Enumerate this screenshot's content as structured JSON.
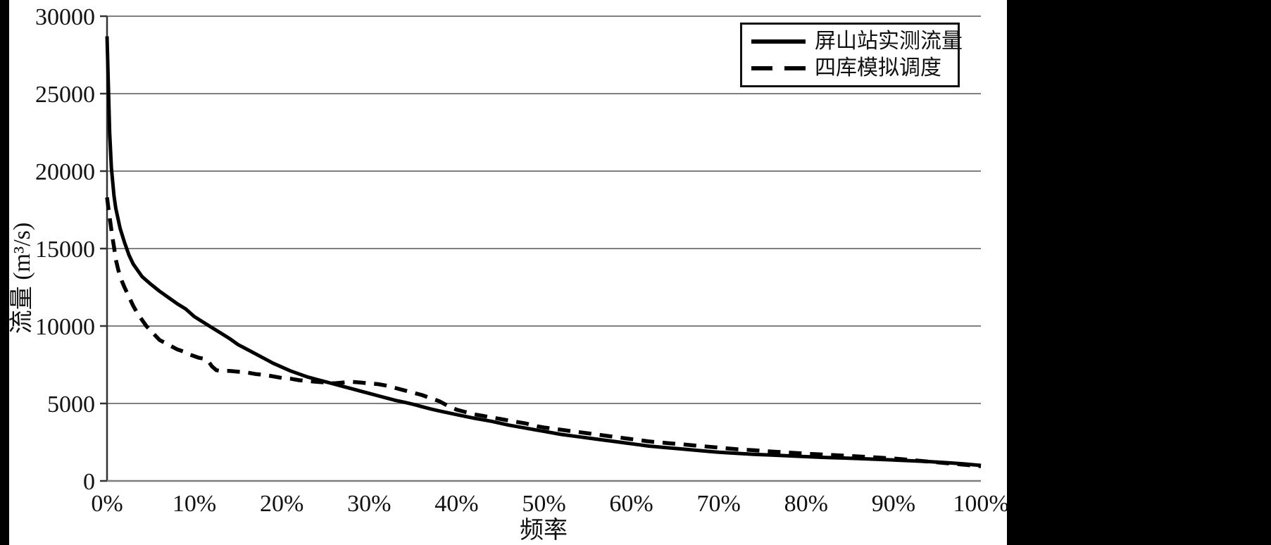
{
  "chart_data": {
    "type": "line",
    "title": "",
    "xlabel": "频率",
    "ylabel": "流量 (m³/s)",
    "xlim": [
      0,
      100
    ],
    "ylim": [
      0,
      30000
    ],
    "grid": "horizontal-only",
    "legend_position": "top-right",
    "x_ticks": {
      "values": [
        0,
        10,
        20,
        30,
        40,
        50,
        60,
        70,
        80,
        90,
        100
      ],
      "labels": [
        "0%",
        "10%",
        "20%",
        "30%",
        "40%",
        "50%",
        "60%",
        "70%",
        "80%",
        "90%",
        "100%"
      ]
    },
    "y_ticks": {
      "values": [
        0,
        5000,
        10000,
        15000,
        20000,
        25000,
        30000
      ],
      "labels": [
        "0",
        "5000",
        "10000",
        "15000",
        "20000",
        "25000",
        "30000"
      ]
    },
    "series": [
      {
        "name": "屏山站实测流量",
        "style": "solid",
        "color": "#000000",
        "points": [
          [
            0,
            28700
          ],
          [
            0.15,
            25500
          ],
          [
            0.3,
            22500
          ],
          [
            0.5,
            20200
          ],
          [
            0.8,
            18400
          ],
          [
            1,
            17600
          ],
          [
            1.5,
            16300
          ],
          [
            2,
            15400
          ],
          [
            2.5,
            14600
          ],
          [
            3,
            14000
          ],
          [
            3.5,
            13600
          ],
          [
            4,
            13200
          ],
          [
            4.5,
            12950
          ],
          [
            5,
            12700
          ],
          [
            6,
            12250
          ],
          [
            7,
            11850
          ],
          [
            8,
            11450
          ],
          [
            9,
            11100
          ],
          [
            10,
            10600
          ],
          [
            11,
            10250
          ],
          [
            12,
            9900
          ],
          [
            13,
            9550
          ],
          [
            14,
            9200
          ],
          [
            15,
            8800
          ],
          [
            16,
            8500
          ],
          [
            17,
            8200
          ],
          [
            18,
            7900
          ],
          [
            19,
            7600
          ],
          [
            20,
            7350
          ],
          [
            21,
            7100
          ],
          [
            22,
            6900
          ],
          [
            23,
            6700
          ],
          [
            24,
            6550
          ],
          [
            25,
            6400
          ],
          [
            26,
            6250
          ],
          [
            27,
            6100
          ],
          [
            28,
            5950
          ],
          [
            29,
            5800
          ],
          [
            30,
            5650
          ],
          [
            31,
            5500
          ],
          [
            32,
            5350
          ],
          [
            33,
            5200
          ],
          [
            34,
            5080
          ],
          [
            35,
            4950
          ],
          [
            36,
            4800
          ],
          [
            37,
            4650
          ],
          [
            38,
            4520
          ],
          [
            39,
            4400
          ],
          [
            40,
            4280
          ],
          [
            42,
            4050
          ],
          [
            44,
            3850
          ],
          [
            46,
            3600
          ],
          [
            48,
            3400
          ],
          [
            50,
            3200
          ],
          [
            52,
            3000
          ],
          [
            54,
            2850
          ],
          [
            56,
            2700
          ],
          [
            58,
            2550
          ],
          [
            60,
            2400
          ],
          [
            62,
            2250
          ],
          [
            64,
            2150
          ],
          [
            66,
            2050
          ],
          [
            68,
            1950
          ],
          [
            70,
            1850
          ],
          [
            72,
            1780
          ],
          [
            74,
            1720
          ],
          [
            76,
            1670
          ],
          [
            78,
            1620
          ],
          [
            80,
            1570
          ],
          [
            82,
            1520
          ],
          [
            84,
            1480
          ],
          [
            86,
            1440
          ],
          [
            88,
            1400
          ],
          [
            90,
            1350
          ],
          [
            92,
            1300
          ],
          [
            94,
            1250
          ],
          [
            96,
            1180
          ],
          [
            98,
            1100
          ],
          [
            100,
            1000
          ]
        ]
      },
      {
        "name": "四库模拟调度",
        "style": "dashed",
        "color": "#000000",
        "points": [
          [
            0,
            18300
          ],
          [
            0.2,
            17400
          ],
          [
            0.4,
            16600
          ],
          [
            0.6,
            15800
          ],
          [
            0.8,
            15100
          ],
          [
            1,
            14300
          ],
          [
            1.3,
            13600
          ],
          [
            1.7,
            12900
          ],
          [
            2,
            12500
          ],
          [
            2.5,
            11900
          ],
          [
            3,
            11300
          ],
          [
            3.5,
            10800
          ],
          [
            4,
            10400
          ],
          [
            4.5,
            10000
          ],
          [
            5,
            9700
          ],
          [
            5.5,
            9400
          ],
          [
            6,
            9100
          ],
          [
            6.5,
            8950
          ],
          [
            7,
            8800
          ],
          [
            7.5,
            8650
          ],
          [
            8,
            8500
          ],
          [
            8.5,
            8400
          ],
          [
            9,
            8300
          ],
          [
            9.5,
            8150
          ],
          [
            10,
            8050
          ],
          [
            10.5,
            7950
          ],
          [
            11,
            7900
          ],
          [
            11.5,
            7800
          ],
          [
            12,
            7400
          ],
          [
            12.5,
            7150
          ],
          [
            13,
            7100
          ],
          [
            14,
            7100
          ],
          [
            15,
            7050
          ],
          [
            16,
            7000
          ],
          [
            17,
            6900
          ],
          [
            18,
            6850
          ],
          [
            19,
            6750
          ],
          [
            20,
            6650
          ],
          [
            21,
            6600
          ],
          [
            22,
            6500
          ],
          [
            23,
            6450
          ],
          [
            24,
            6400
          ],
          [
            25,
            6350
          ],
          [
            26,
            6300
          ],
          [
            27,
            6350
          ],
          [
            28,
            6400
          ],
          [
            29,
            6350
          ],
          [
            30,
            6300
          ],
          [
            31,
            6250
          ],
          [
            32,
            6150
          ],
          [
            33,
            6000
          ],
          [
            34,
            5850
          ],
          [
            35,
            5700
          ],
          [
            36,
            5550
          ],
          [
            37,
            5350
          ],
          [
            38,
            5150
          ],
          [
            39,
            4850
          ],
          [
            40,
            4600
          ],
          [
            41,
            4450
          ],
          [
            42,
            4300
          ],
          [
            43,
            4200
          ],
          [
            44,
            4100
          ],
          [
            45,
            4000
          ],
          [
            46,
            3900
          ],
          [
            47,
            3800
          ],
          [
            48,
            3700
          ],
          [
            49,
            3550
          ],
          [
            50,
            3450
          ],
          [
            52,
            3300
          ],
          [
            54,
            3150
          ],
          [
            56,
            3000
          ],
          [
            58,
            2850
          ],
          [
            60,
            2700
          ],
          [
            62,
            2550
          ],
          [
            64,
            2450
          ],
          [
            66,
            2350
          ],
          [
            68,
            2250
          ],
          [
            70,
            2150
          ],
          [
            72,
            2050
          ],
          [
            74,
            1980
          ],
          [
            76,
            1900
          ],
          [
            78,
            1830
          ],
          [
            80,
            1760
          ],
          [
            82,
            1700
          ],
          [
            84,
            1640
          ],
          [
            86,
            1580
          ],
          [
            88,
            1520
          ],
          [
            90,
            1450
          ],
          [
            92,
            1350
          ],
          [
            94,
            1250
          ],
          [
            96,
            1150
          ],
          [
            98,
            1050
          ],
          [
            100,
            950
          ]
        ]
      }
    ]
  },
  "colors": {
    "grid": "#7f7f7f",
    "x_axis": "#7f7f7f",
    "y_axis": "#333333",
    "curve": "#000000",
    "scan_border": "#000000",
    "text": "#111111"
  }
}
